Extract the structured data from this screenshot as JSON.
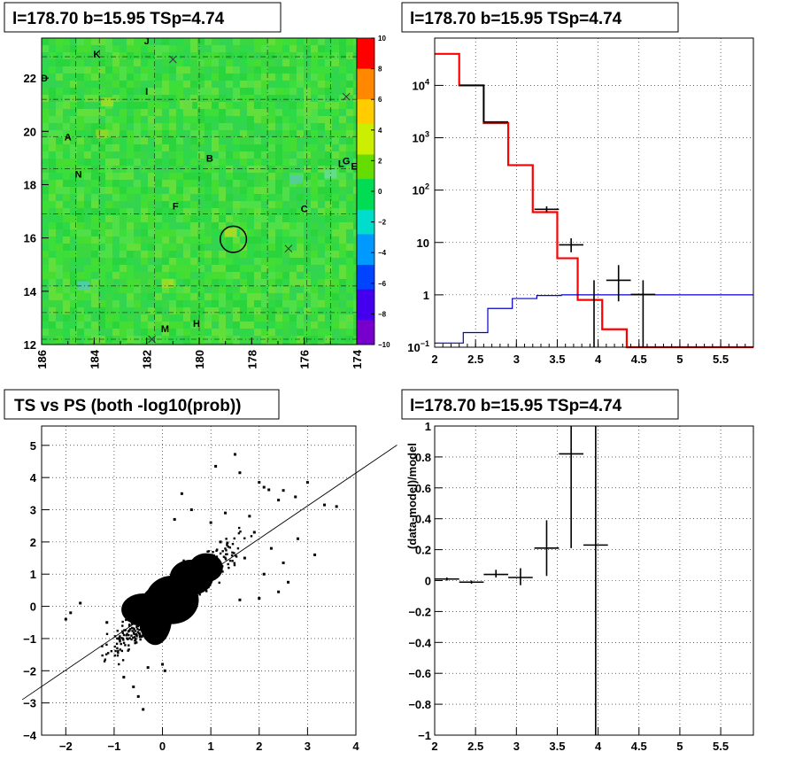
{
  "titles": {
    "map": "l=178.70 b=15.95 TSp=4.74",
    "spectrum": "l=178.70 b=15.95 TSp=4.74",
    "scatter": "TS vs PS (both -log10(prob))",
    "residual": "l=178.70 b=15.95 TSp=4.74"
  },
  "chart_data": [
    {
      "type": "heatmap",
      "panel": "map",
      "title": "l=178.70 b=15.95 TSp=4.74",
      "xlim": [
        186,
        174
      ],
      "ylim": [
        12,
        23.5
      ],
      "x_ticks": [
        "186",
        "184",
        "182",
        "180",
        "178",
        "176",
        "174"
      ],
      "y_ticks": [
        "12",
        "14",
        "16",
        "18",
        "20",
        "22"
      ],
      "colorbar": {
        "min": -10,
        "max": 10,
        "ticks": [
          "10",
          "8",
          "6",
          "4",
          "2",
          "0",
          "−2",
          "−4",
          "−6",
          "−8",
          "−10"
        ]
      },
      "colors": {
        "dominant": "#33dd33",
        "low": "#6600cc",
        "high": "#ff0000"
      },
      "circle": {
        "l": 178.7,
        "b": 15.95,
        "r": 0.5
      },
      "labels": [
        {
          "text": "K",
          "l": 183.9,
          "b": 22.9
        },
        {
          "text": "J",
          "l": 182.0,
          "b": 23.4
        },
        {
          "text": "D",
          "l": 185.9,
          "b": 22.0
        },
        {
          "text": "I",
          "l": 182.0,
          "b": 21.5
        },
        {
          "text": "A",
          "l": 185.0,
          "b": 19.8
        },
        {
          "text": "N",
          "l": 184.6,
          "b": 18.4
        },
        {
          "text": "B",
          "l": 179.6,
          "b": 19.0
        },
        {
          "text": "F",
          "l": 180.9,
          "b": 17.2
        },
        {
          "text": "C",
          "l": 176.0,
          "b": 17.1
        },
        {
          "text": "L",
          "l": 174.6,
          "b": 18.8
        },
        {
          "text": "G",
          "l": 174.4,
          "b": 18.9
        },
        {
          "text": "E",
          "l": 174.1,
          "b": 18.7
        },
        {
          "text": "M",
          "l": 181.3,
          "b": 12.6
        },
        {
          "text": "H",
          "l": 180.1,
          "b": 12.8
        }
      ],
      "crosses": [
        {
          "l": 181.0,
          "b": 22.7
        },
        {
          "l": 174.4,
          "b": 21.3
        },
        {
          "l": 176.6,
          "b": 15.6
        },
        {
          "l": 181.8,
          "b": 12.2
        }
      ]
    },
    {
      "type": "line",
      "panel": "spectrum",
      "title": "l=178.70 b=15.95 TSp=4.74",
      "xlim": [
        2,
        5.9
      ],
      "ylim": [
        0.1,
        80000
      ],
      "y_scale": "log",
      "x_ticks": [
        "2",
        "2.5",
        "3",
        "3.5",
        "4",
        "4.5",
        "5",
        "5.5"
      ],
      "y_ticks": [
        {
          "base": "10",
          "exp": "−1",
          "v": 0.1
        },
        {
          "base": "1",
          "exp": "",
          "v": 1
        },
        {
          "base": "10",
          "exp": "",
          "v": 10
        },
        {
          "base": "10",
          "exp": "2",
          "v": 100
        },
        {
          "base": "10",
          "exp": "3",
          "v": 1000
        },
        {
          "base": "10",
          "exp": "4",
          "v": 10000
        }
      ],
      "grid": true,
      "series": [
        {
          "style": "step",
          "color": "#ff0000",
          "edges": [
            2.0,
            2.3,
            2.6,
            2.9,
            3.2,
            3.5,
            3.75,
            4.05,
            4.35,
            5.9
          ],
          "values": [
            40000,
            10000,
            1900,
            300,
            38,
            5,
            0.8,
            0.22,
            0.1
          ]
        },
        {
          "style": "step",
          "color": "#000000",
          "edges": [
            2.3,
            2.6,
            2.9
          ],
          "values": [
            10000,
            2000
          ]
        },
        {
          "style": "step",
          "color": "#0000cc",
          "edges": [
            2.0,
            2.35,
            2.65,
            2.95,
            3.25,
            3.55,
            3.85,
            4.15,
            4.45,
            4.75,
            5.9
          ],
          "values": [
            0.12,
            0.19,
            0.55,
            0.85,
            0.97,
            1.0,
            1.0,
            1.0,
            1.0,
            1.0
          ]
        },
        {
          "style": "errorbar",
          "color": "#000000",
          "points": [
            {
              "x": 3.37,
              "y": 43,
              "xerr": 0.15,
              "ylo": 38,
              "yhi": 49
            },
            {
              "x": 3.67,
              "y": 9,
              "xerr": 0.15,
              "ylo": 6.5,
              "yhi": 12
            },
            {
              "x": 3.95,
              "y": 0.1,
              "xerr": 0,
              "ylo": 0.1,
              "yhi": 1.9
            },
            {
              "x": 4.25,
              "y": 1.9,
              "xerr": 0.15,
              "ylo": 0.75,
              "yhi": 3.7
            },
            {
              "x": 4.55,
              "y": 1.02,
              "xerr": 0.15,
              "ylo": 0.1,
              "yhi": 1.9
            }
          ]
        }
      ]
    },
    {
      "type": "scatter",
      "panel": "scatter",
      "title": "TS vs PS (both -log10(prob))",
      "xlim": [
        -2.5,
        4
      ],
      "ylim": [
        -4,
        5.6
      ],
      "x_ticks": [
        "−2",
        "−1",
        "0",
        "1",
        "2",
        "3",
        "4"
      ],
      "y_ticks": [
        "−4",
        "−3",
        "−2",
        "−1",
        "0",
        "1",
        "2",
        "3",
        "4",
        "5"
      ],
      "grid": true,
      "fit_line": {
        "slope": 1.02,
        "intercept": 0.06
      },
      "points": [
        [
          1.5,
          4.72
        ],
        [
          1.1,
          4.35
        ],
        [
          1.6,
          4.15
        ],
        [
          2.0,
          3.85
        ],
        [
          2.1,
          3.7
        ],
        [
          2.2,
          3.62
        ],
        [
          2.5,
          3.6
        ],
        [
          2.75,
          3.4
        ],
        [
          3.0,
          3.85
        ],
        [
          3.35,
          3.15
        ],
        [
          3.6,
          3.1
        ],
        [
          2.4,
          3.3
        ],
        [
          0.4,
          3.5
        ],
        [
          0.6,
          3.0
        ],
        [
          2.8,
          2.1
        ],
        [
          3.15,
          1.6
        ],
        [
          2.25,
          1.8
        ],
        [
          2.5,
          1.35
        ],
        [
          2.6,
          0.75
        ],
        [
          2.4,
          0.45
        ],
        [
          1.6,
          0.2
        ],
        [
          2.0,
          0.25
        ],
        [
          0.25,
          2.7
        ],
        [
          -1.7,
          0.1
        ],
        [
          -1.9,
          -0.2
        ],
        [
          -2.0,
          -0.4
        ],
        [
          -1.15,
          -0.5
        ],
        [
          -0.8,
          -2.2
        ],
        [
          -0.5,
          -2.8
        ],
        [
          -0.4,
          -3.2
        ],
        [
          -0.6,
          -2.5
        ],
        [
          0.0,
          -1.8
        ],
        [
          0.05,
          -2.0
        ],
        [
          -0.3,
          -1.9
        ],
        [
          1.8,
          2.8
        ],
        [
          1.9,
          2.3
        ],
        [
          1.0,
          2.6
        ],
        [
          1.3,
          2.9
        ],
        [
          1.7,
          1.5
        ],
        [
          2.1,
          1.0
        ],
        [
          1.2,
          2.0
        ],
        [
          -0.9,
          -1.0
        ]
      ]
    },
    {
      "type": "scatter",
      "panel": "residual",
      "title": "l=178.70 b=15.95 TSp=4.74",
      "ylabel": "(data-model)/model",
      "xlim": [
        2,
        5.9
      ],
      "ylim": [
        -1,
        1
      ],
      "x_ticks": [
        "2",
        "2.5",
        "3",
        "3.5",
        "4",
        "4.5",
        "5",
        "5.5"
      ],
      "y_ticks": [
        "−1",
        "−0.8",
        "−0.6",
        "−0.4",
        "−0.2",
        "0",
        "0.2",
        "0.4",
        "0.6",
        "0.8",
        "1"
      ],
      "grid": true,
      "points": [
        {
          "x": 2.15,
          "y": 0.01,
          "xerr": 0.15,
          "ylo": 0.0,
          "yhi": 0.02
        },
        {
          "x": 2.45,
          "y": -0.01,
          "xerr": 0.15,
          "ylo": -0.02,
          "yhi": 0.0
        },
        {
          "x": 2.75,
          "y": 0.04,
          "xerr": 0.15,
          "ylo": 0.02,
          "yhi": 0.07
        },
        {
          "x": 3.05,
          "y": 0.02,
          "xerr": 0.15,
          "ylo": -0.03,
          "yhi": 0.08
        },
        {
          "x": 3.37,
          "y": 0.21,
          "xerr": 0.15,
          "ylo": 0.03,
          "yhi": 0.39
        },
        {
          "x": 3.67,
          "y": 0.82,
          "xerr": 0.15,
          "ylo": 0.21,
          "yhi": 1.0
        },
        {
          "x": 3.97,
          "y": 0.23,
          "xerr": 0.15,
          "ylo": -1.0,
          "yhi": 1.0
        }
      ]
    }
  ]
}
